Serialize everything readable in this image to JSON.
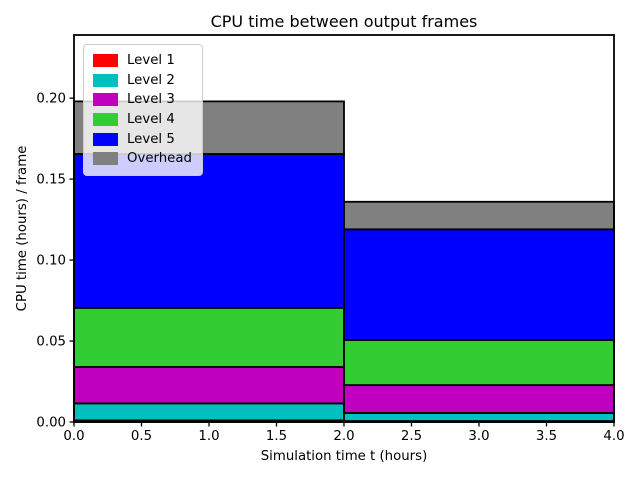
{
  "chart_data": {
    "type": "bar",
    "stacked": true,
    "title": "CPU time between output frames",
    "xlabel": "Simulation time t (hours)",
    "ylabel": "CPU time (hours) / frame",
    "xlim": [
      0.0,
      4.0
    ],
    "ylim": [
      0.0,
      0.239
    ],
    "xticks": [
      0.0,
      0.5,
      1.0,
      1.5,
      2.0,
      2.5,
      3.0,
      3.5,
      4.0
    ],
    "xtick_labels": [
      "0.0",
      "0.5",
      "1.0",
      "1.5",
      "2.0",
      "2.5",
      "3.0",
      "3.5",
      "4.0"
    ],
    "yticks": [
      0.0,
      0.05,
      0.1,
      0.15,
      0.2
    ],
    "ytick_labels": [
      "0.00",
      "0.05",
      "0.10",
      "0.15",
      "0.20"
    ],
    "grid": false,
    "legend_position": "upper left",
    "bar_edge_color": "#000000",
    "background_color": "#ffffff",
    "bins": [
      {
        "x_start": 0.0,
        "x_end": 2.0
      },
      {
        "x_start": 2.0,
        "x_end": 4.0
      }
    ],
    "series": [
      {
        "name": "Level 1",
        "color": "#ff0000",
        "values": [
          0.001,
          0.0006
        ]
      },
      {
        "name": "Level 2",
        "color": "#00bfbf",
        "values": [
          0.0105,
          0.005
        ]
      },
      {
        "name": "Level 3",
        "color": "#bf00bf",
        "values": [
          0.0225,
          0.0172
        ]
      },
      {
        "name": "Level 4",
        "color": "#32cd32",
        "values": [
          0.0365,
          0.0278
        ]
      },
      {
        "name": "Level 5",
        "color": "#0000ff",
        "values": [
          0.095,
          0.0684
        ]
      },
      {
        "name": "Overhead",
        "color": "#808080",
        "values": [
          0.0325,
          0.017
        ]
      }
    ],
    "stack_totals": [
      0.198,
      0.136
    ]
  }
}
